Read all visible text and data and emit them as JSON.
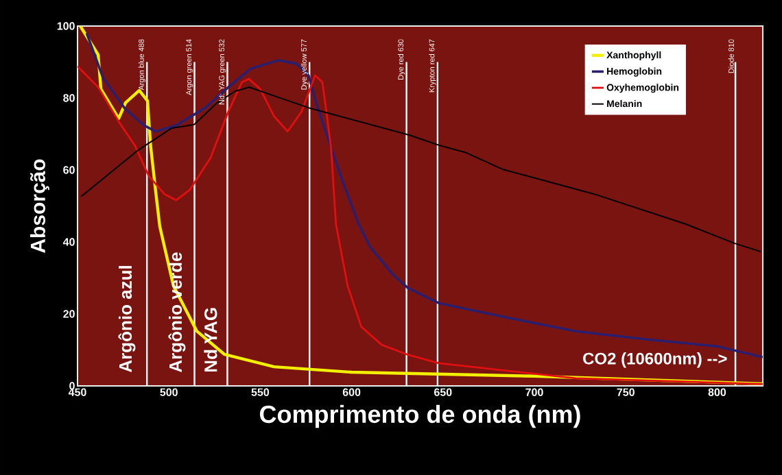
{
  "chart_data": {
    "type": "line",
    "xlabel": "Comprimento de onda (nm)",
    "ylabel": "Absorção",
    "xlim": [
      450,
      825
    ],
    "ylim": [
      0,
      100
    ],
    "xticks": [
      450,
      500,
      550,
      600,
      650,
      700,
      750,
      800
    ],
    "yticks": [
      0,
      20,
      40,
      60,
      80,
      100
    ],
    "legend": "top right",
    "series": [
      {
        "name": "Xanthophyll",
        "color": "#f2f000",
        "x": [
          451.5,
          461.3,
          462.8,
          472.5,
          476.3,
          483.8,
          488.3,
          490,
          492.8,
          495,
          502.5,
          515.3,
          530.3,
          557.6,
          600,
          700,
          825
        ],
        "values": [
          100,
          92,
          82.5,
          74.3,
          78.7,
          82.1,
          79.2,
          66.7,
          53.9,
          44.4,
          27.8,
          15.2,
          8.8,
          5.3,
          3.8,
          2.7,
          0.6
        ]
      },
      {
        "name": "Hemoglobin",
        "color": "#2a1e6e",
        "x": [
          455,
          463.9,
          476,
          486.4,
          492.8,
          504,
          520,
          532.5,
          545,
          560,
          570,
          576.4,
          581,
          587.7,
          595,
          603.8,
          610,
          622.5,
          630.8,
          647.7,
          685,
          722.7,
          760,
          800,
          825
        ],
        "values": [
          98,
          85.7,
          77,
          72.4,
          70.7,
          72.4,
          77.3,
          83,
          88.2,
          90.5,
          89.5,
          86.3,
          78,
          67.8,
          57,
          45,
          38.7,
          31,
          27.2,
          23,
          19,
          15.2,
          13,
          11,
          8
        ]
      },
      {
        "name": "Oxyhemoglobin",
        "color": "#e01010",
        "x": [
          450,
          461.3,
          472.5,
          481.5,
          489,
          497.6,
          504,
          511.5,
          522.8,
          532.5,
          540,
          543.8,
          550,
          557.6,
          565,
          572.6,
          580,
          584,
          586.5,
          588.8,
          591.4,
          597.8,
          605.3,
          616.5,
          630,
          647.7,
          722.7,
          825
        ],
        "values": [
          88.8,
          83,
          73.5,
          66.7,
          58.3,
          53.3,
          51.6,
          54.5,
          63.4,
          76.2,
          84.4,
          85.3,
          82.5,
          74.9,
          70.7,
          76.2,
          86.3,
          84.4,
          75,
          65.9,
          45,
          27.8,
          16.4,
          11.4,
          8.8,
          6.3,
          2.1,
          0.5
        ]
      },
      {
        "name": "Melanin",
        "color": "#000000",
        "x": [
          452,
          482.6,
          501.4,
          513.8,
          526.5,
          536.3,
          544,
          557.6,
          576.4,
          631.5,
          647.7,
          662.7,
          682.6,
          732.8,
          782.7,
          809.7,
          824
        ],
        "values": [
          52.6,
          65.3,
          71.6,
          72.6,
          78.7,
          81.9,
          83,
          80.6,
          77.3,
          69.7,
          66.9,
          64.8,
          60.2,
          53.3,
          45,
          39.6,
          37.3
        ]
      }
    ],
    "ref_lines": [
      {
        "axis": "x",
        "value": 488,
        "label": "Argon blue 488",
        "color": "#ffffff"
      },
      {
        "axis": "x",
        "value": 514,
        "label": "Argon green 514",
        "color": "#ffffff"
      },
      {
        "axis": "x",
        "value": 532,
        "label": "Nd: YAG green 532",
        "color": "#ffffff"
      },
      {
        "axis": "x",
        "value": 577,
        "label": "Dye yellow 577",
        "color": "#ffffff"
      },
      {
        "axis": "x",
        "value": 630,
        "label": "Dye red 630",
        "color": "#ffffff"
      },
      {
        "axis": "x",
        "value": 647,
        "label": "Krypton red 647",
        "color": "#ffffff"
      },
      {
        "axis": "x",
        "value": 810,
        "label": "Diode 810",
        "color": "#ffffff"
      }
    ],
    "annotations": [
      "Argônio azul",
      "Argônio verde",
      "Nd YAG",
      "CO2 (10600nm) -->"
    ]
  }
}
